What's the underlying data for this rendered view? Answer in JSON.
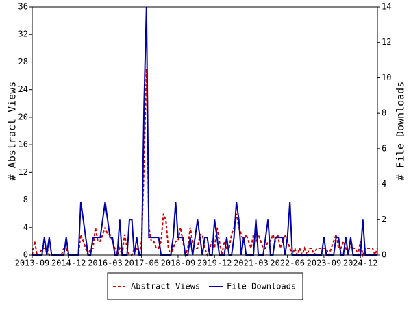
{
  "chart_data": {
    "type": "line",
    "ylabel": "# Abstract Views",
    "y2label": "# File Downloads",
    "categories": [
      "2013-09",
      null,
      null,
      null,
      null,
      null,
      null,
      null,
      null,
      null,
      null,
      null,
      null,
      null,
      null,
      "2014-12",
      null,
      null,
      null,
      null,
      null,
      null,
      null,
      null,
      null,
      null,
      null,
      null,
      null,
      null,
      "2016-03",
      null,
      null,
      null,
      null,
      null,
      null,
      null,
      null,
      null,
      null,
      null,
      null,
      null,
      null,
      "2017-06",
      null,
      null,
      null,
      null,
      null,
      null,
      null,
      null,
      null,
      null,
      null,
      null,
      null,
      null,
      "2018-09",
      null,
      null,
      null,
      null,
      null,
      null,
      null,
      null,
      null,
      null,
      null,
      null,
      null,
      null,
      "2019-12",
      null,
      null,
      null,
      null,
      null,
      null,
      null,
      null,
      null,
      null,
      null,
      null,
      null,
      null,
      "2021-03",
      null,
      null,
      null,
      null,
      null,
      null,
      null,
      null,
      null,
      null,
      null,
      null,
      null,
      null,
      "2022-06",
      null,
      null,
      null,
      null,
      null,
      null,
      null,
      null,
      null,
      null,
      null,
      null,
      null,
      null,
      "2023-09",
      null,
      null,
      null,
      null,
      null,
      null,
      null,
      null,
      null,
      null,
      null,
      null,
      null,
      null,
      "2024-12",
      null,
      null,
      null,
      null,
      null,
      null,
      null
    ],
    "series": [
      {
        "name": "Abstract Views",
        "color": "#cc0000",
        "dashed": true,
        "values": [
          0,
          2,
          0,
          0,
          1,
          1,
          1,
          0,
          0,
          0,
          0,
          0,
          0,
          1,
          1,
          0,
          0,
          0,
          0,
          0,
          3,
          2,
          1,
          0,
          1,
          1,
          4,
          2,
          2,
          3,
          4,
          3,
          3,
          2,
          1,
          0,
          1,
          0,
          3,
          1,
          0,
          0,
          1,
          1,
          0,
          2,
          13,
          27,
          4,
          2,
          2,
          1,
          1,
          2,
          6,
          5,
          1,
          0,
          1,
          2,
          2,
          4,
          2,
          0,
          1,
          4,
          2,
          1,
          1,
          3,
          3,
          1,
          0,
          1,
          2,
          1,
          4,
          2,
          0,
          2,
          1,
          1,
          3,
          4,
          6,
          4,
          3,
          2,
          3,
          2,
          1,
          3,
          2,
          3,
          2,
          1,
          1,
          2,
          2,
          3,
          2,
          3,
          1,
          2,
          3,
          2,
          1,
          0,
          1,
          0,
          1,
          0,
          1,
          0,
          1,
          1,
          0,
          1,
          1,
          1,
          1,
          1,
          0,
          1,
          2,
          3,
          1,
          1,
          2,
          1,
          0,
          2,
          1,
          1,
          0,
          2,
          0,
          1,
          1,
          1,
          1,
          0,
          1
        ]
      },
      {
        "name": "File Downloads",
        "color": "#0000aa",
        "axis": "y2",
        "values": [
          0,
          0,
          0,
          0,
          0,
          1,
          0,
          1,
          0,
          0,
          0,
          0,
          0,
          0,
          1,
          0,
          0,
          0,
          0,
          0,
          3,
          2,
          1,
          0,
          0,
          1,
          1,
          1,
          1,
          2,
          3,
          2,
          1,
          1,
          0,
          0,
          2,
          0,
          0,
          0,
          2,
          2,
          0,
          1,
          0,
          0,
          8.5,
          14,
          1,
          1,
          1,
          1,
          1,
          0,
          0,
          0,
          0,
          0,
          1,
          3,
          1,
          1,
          1,
          0,
          0,
          1,
          0,
          1,
          2,
          1,
          0,
          1,
          1,
          0,
          0,
          2,
          1,
          0,
          0,
          0,
          1,
          0,
          0,
          1,
          3,
          2,
          0,
          1,
          0,
          0,
          0,
          0,
          2,
          0,
          0,
          0,
          1,
          2,
          0,
          0,
          1,
          1,
          1,
          1,
          0,
          1,
          3,
          0,
          0,
          0,
          0,
          0,
          0,
          0,
          0,
          0,
          0,
          0,
          0,
          0,
          1,
          0,
          0,
          0,
          0,
          1,
          1,
          0,
          0,
          1,
          0,
          1,
          0,
          0,
          0,
          0,
          2,
          0,
          0,
          0,
          0,
          0,
          0
        ]
      }
    ],
    "ylim": [
      0,
      36
    ],
    "yticks": [
      0,
      4,
      8,
      12,
      16,
      20,
      24,
      28,
      32,
      36
    ],
    "y2lim": [
      0,
      14
    ],
    "y2ticks": [
      0,
      2,
      4,
      6,
      8,
      10,
      12,
      14
    ],
    "legend": "bottom"
  }
}
